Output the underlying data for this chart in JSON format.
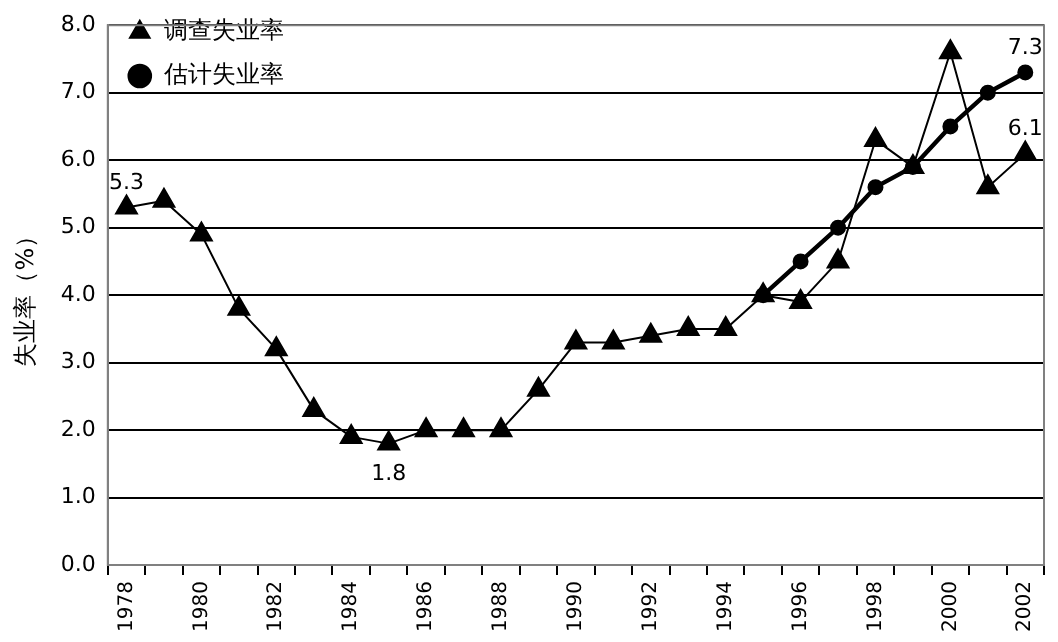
{
  "chart_data": {
    "type": "line",
    "ylabel": "失业率（%）",
    "categories": [
      "1978",
      null,
      "1980",
      null,
      "1982",
      null,
      "1984",
      null,
      "1986",
      null,
      "1988",
      null,
      "1990",
      null,
      "1992",
      null,
      "1994",
      null,
      "1996",
      null,
      "1998",
      null,
      "2000",
      null,
      "2002"
    ],
    "series": [
      {
        "name": "调查失业率",
        "color": "#000000",
        "marker": "triangle",
        "values": [
          5.3,
          5.4,
          4.9,
          3.8,
          3.2,
          2.3,
          1.9,
          1.8,
          2.0,
          2.0,
          2.0,
          2.6,
          3.3,
          3.3,
          3.4,
          3.5,
          3.5,
          4.0,
          3.9,
          4.5,
          6.3,
          5.9,
          7.6,
          5.6,
          6.1
        ],
        "value_labels": [
          "5.3",
          null,
          null,
          null,
          null,
          null,
          null,
          "1.8",
          null,
          null,
          null,
          null,
          null,
          null,
          null,
          null,
          null,
          null,
          null,
          null,
          null,
          null,
          null,
          null,
          "6.1"
        ]
      },
      {
        "name": "估计失业率",
        "color": "#000000",
        "marker": "circle",
        "values": [
          null,
          null,
          null,
          null,
          null,
          null,
          null,
          null,
          null,
          null,
          null,
          null,
          null,
          null,
          null,
          null,
          null,
          4.0,
          4.5,
          5.0,
          5.6,
          5.9,
          6.5,
          7.0,
          7.3
        ],
        "value_labels": [
          null,
          null,
          null,
          null,
          null,
          null,
          null,
          null,
          null,
          null,
          null,
          null,
          null,
          null,
          null,
          null,
          null,
          null,
          null,
          null,
          null,
          null,
          null,
          null,
          "7.3"
        ]
      }
    ],
    "ylim": [
      0,
      8
    ],
    "yticks": [
      {
        "value": 0,
        "label": "0.0"
      },
      {
        "value": 1,
        "label": "1.0"
      },
      {
        "value": 2,
        "label": "2.0"
      },
      {
        "value": 3,
        "label": "3.0"
      },
      {
        "value": 4,
        "label": "4.0"
      },
      {
        "value": 5,
        "label": "5.0"
      },
      {
        "value": 6,
        "label": "6.0"
      },
      {
        "value": 7,
        "label": "7.0"
      },
      {
        "value": 8,
        "label": "8.0"
      }
    ],
    "grid": "y",
    "legend": "top left",
    "line_style": "solid"
  }
}
